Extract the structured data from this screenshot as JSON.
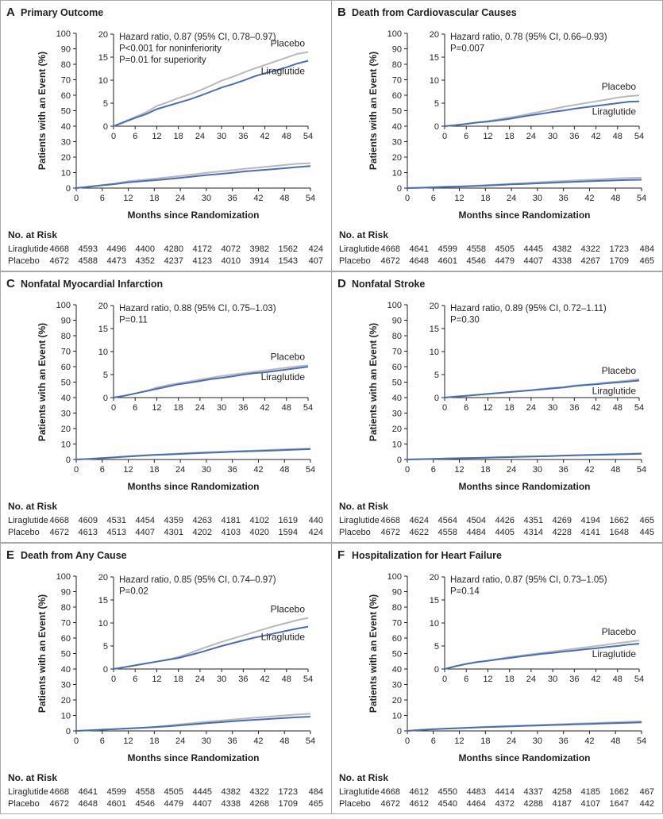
{
  "figure": {
    "risk_header": "No. at Risk",
    "main_xlabel": "Months since Randomization",
    "main_ylabel": "Patients with an Event (%)",
    "colors": {
      "liraglutide": "#4a6eb5",
      "placebo": "#b8b9bc",
      "axis": "#231f20",
      "border": "#a7a9ac"
    }
  },
  "panels": [
    {
      "letter": "A",
      "title": "Primary Outcome",
      "stats": [
        "Hazard ratio, 0.87 (95% CI, 0.78–0.97)",
        "P<0.001 for noninferiority",
        "P=0.01 for superiority"
      ],
      "risk": {
        "groups": [
          "Liraglutide",
          "Placebo"
        ],
        "values": [
          [
            4668,
            4593,
            4496,
            4400,
            4280,
            4172,
            4072,
            3982,
            1562,
            424
          ],
          [
            4672,
            4588,
            4473,
            4352,
            4237,
            4123,
            4010,
            3914,
            1543,
            407
          ]
        ]
      }
    },
    {
      "letter": "B",
      "title": "Death from Cardiovascular Causes",
      "stats": [
        "Hazard ratio, 0.78 (95% CI, 0.66–0.93)",
        "P=0.007"
      ],
      "risk": {
        "groups": [
          "Liraglutide",
          "Placebo"
        ],
        "values": [
          [
            4668,
            4641,
            4599,
            4558,
            4505,
            4445,
            4382,
            4322,
            1723,
            484
          ],
          [
            4672,
            4648,
            4601,
            4546,
            4479,
            4407,
            4338,
            4267,
            1709,
            465
          ]
        ]
      }
    },
    {
      "letter": "C",
      "title": "Nonfatal Myocardial Infarction",
      "stats": [
        "Hazard ratio, 0.88 (95% CI, 0.75–1.03)",
        "P=0.11"
      ],
      "risk": {
        "groups": [
          "Liraglutide",
          "Placebo"
        ],
        "values": [
          [
            4668,
            4609,
            4531,
            4454,
            4359,
            4263,
            4181,
            4102,
            1619,
            440
          ],
          [
            4672,
            4613,
            4513,
            4407,
            4301,
            4202,
            4103,
            4020,
            1594,
            424
          ]
        ]
      }
    },
    {
      "letter": "D",
      "title": "Nonfatal Stroke",
      "stats": [
        "Hazard ratio, 0.89 (95% CI, 0.72–1.11)",
        "P=0.30"
      ],
      "risk": {
        "groups": [
          "Liraglutide",
          "Placebo"
        ],
        "values": [
          [
            4668,
            4624,
            4564,
            4504,
            4426,
            4351,
            4269,
            4194,
            1662,
            465
          ],
          [
            4672,
            4622,
            4558,
            4484,
            4405,
            4314,
            4228,
            4141,
            1648,
            445
          ]
        ]
      }
    },
    {
      "letter": "E",
      "title": "Death from Any Cause",
      "stats": [
        "Hazard ratio, 0.85 (95% CI, 0.74–0.97)",
        "P=0.02"
      ],
      "risk": {
        "groups": [
          "Liraglutide",
          "Placebo"
        ],
        "values": [
          [
            4668,
            4641,
            4599,
            4558,
            4505,
            4445,
            4382,
            4322,
            1723,
            484
          ],
          [
            4672,
            4648,
            4601,
            4546,
            4479,
            4407,
            4338,
            4268,
            1709,
            465
          ]
        ]
      }
    },
    {
      "letter": "F",
      "title": "Hospitalization for Heart Failure",
      "stats": [
        "Hazard ratio, 0.87 (95% CI, 0.73–1.05)",
        "P=0.14"
      ],
      "risk": {
        "groups": [
          "Liraglutide",
          "Placebo"
        ],
        "values": [
          [
            4668,
            4612,
            4550,
            4483,
            4414,
            4337,
            4258,
            4185,
            1662,
            467
          ],
          [
            4672,
            4612,
            4540,
            4464,
            4372,
            4288,
            4187,
            4107,
            1647,
            442
          ]
        ]
      }
    }
  ],
  "chart_data": [
    {
      "type": "line",
      "title": "Primary Outcome",
      "xlabel": "Months since Randomization",
      "ylabel": "Patients with an Event (%)",
      "xlim": [
        0,
        54
      ],
      "ylim": [
        0,
        100
      ],
      "inset_ylim": [
        0,
        20
      ],
      "x_ticks": [
        0,
        6,
        12,
        18,
        24,
        30,
        36,
        42,
        48,
        54
      ],
      "y_ticks": [
        0,
        10,
        20,
        30,
        40,
        50,
        60,
        70,
        80,
        90,
        100
      ],
      "inset_y_ticks": [
        0,
        5,
        10,
        15,
        20
      ],
      "x": [
        0,
        3,
        6,
        9,
        12,
        15,
        18,
        21,
        24,
        27,
        30,
        33,
        36,
        39,
        42,
        45,
        48,
        51,
        54
      ],
      "series": [
        {
          "name": "Liraglutide",
          "values": [
            0,
            0.9,
            1.8,
            2.6,
            3.7,
            4.4,
            5.1,
            5.8,
            6.6,
            7.5,
            8.4,
            9.1,
            9.9,
            10.8,
            11.5,
            12.1,
            12.8,
            13.6,
            14.2
          ]
        },
        {
          "name": "Placebo",
          "values": [
            0,
            1.0,
            2.0,
            3.0,
            4.4,
            5.2,
            6.1,
            6.9,
            7.8,
            8.8,
            9.9,
            10.7,
            11.6,
            12.5,
            13.3,
            14.1,
            14.9,
            15.7,
            16.1
          ]
        }
      ]
    },
    {
      "type": "line",
      "title": "Death from Cardiovascular Causes",
      "xlabel": "Months since Randomization",
      "ylabel": "Patients with an Event (%)",
      "xlim": [
        0,
        54
      ],
      "ylim": [
        0,
        100
      ],
      "inset_ylim": [
        0,
        20
      ],
      "x_ticks": [
        0,
        6,
        12,
        18,
        24,
        30,
        36,
        42,
        48,
        54
      ],
      "y_ticks": [
        0,
        10,
        20,
        30,
        40,
        50,
        60,
        70,
        80,
        90,
        100
      ],
      "inset_y_ticks": [
        0,
        5,
        10,
        15,
        20
      ],
      "x": [
        0,
        3,
        6,
        9,
        12,
        15,
        18,
        21,
        24,
        27,
        30,
        33,
        36,
        39,
        42,
        45,
        48,
        51,
        54
      ],
      "series": [
        {
          "name": "Liraglutide",
          "values": [
            0,
            0.2,
            0.5,
            0.8,
            1.0,
            1.3,
            1.6,
            2.0,
            2.4,
            2.7,
            3.1,
            3.4,
            3.8,
            4.1,
            4.4,
            4.7,
            5.0,
            5.3,
            5.4
          ]
        },
        {
          "name": "Placebo",
          "values": [
            0,
            0.2,
            0.5,
            0.8,
            1.1,
            1.5,
            1.9,
            2.3,
            2.8,
            3.2,
            3.7,
            4.2,
            4.6,
            5.0,
            5.4,
            5.8,
            6.2,
            6.5,
            6.7
          ]
        }
      ]
    },
    {
      "type": "line",
      "title": "Nonfatal Myocardial Infarction",
      "xlabel": "Months since Randomization",
      "ylabel": "Patients with an Event (%)",
      "xlim": [
        0,
        54
      ],
      "ylim": [
        0,
        100
      ],
      "inset_ylim": [
        0,
        20
      ],
      "x_ticks": [
        0,
        6,
        12,
        18,
        24,
        30,
        36,
        42,
        48,
        54
      ],
      "y_ticks": [
        0,
        10,
        20,
        30,
        40,
        50,
        60,
        70,
        80,
        90,
        100
      ],
      "inset_y_ticks": [
        0,
        5,
        10,
        15,
        20
      ],
      "x": [
        0,
        3,
        6,
        9,
        12,
        15,
        18,
        21,
        24,
        27,
        30,
        33,
        36,
        39,
        42,
        45,
        48,
        51,
        54
      ],
      "series": [
        {
          "name": "Liraglutide",
          "values": [
            0,
            0.4,
            0.9,
            1.4,
            1.9,
            2.4,
            2.9,
            3.2,
            3.6,
            4.0,
            4.3,
            4.6,
            5.0,
            5.3,
            5.5,
            5.8,
            6.1,
            6.4,
            6.7
          ]
        },
        {
          "name": "Placebo",
          "values": [
            0,
            0.4,
            0.9,
            1.4,
            2.2,
            2.7,
            3.1,
            3.5,
            3.9,
            4.3,
            4.7,
            5.0,
            5.3,
            5.6,
            5.9,
            6.2,
            6.5,
            6.8,
            7.0
          ]
        }
      ]
    },
    {
      "type": "line",
      "title": "Nonfatal Stroke",
      "xlabel": "Months since Randomization",
      "ylabel": "Patients with an Event (%)",
      "xlim": [
        0,
        54
      ],
      "ylim": [
        0,
        100
      ],
      "inset_ylim": [
        0,
        20
      ],
      "x_ticks": [
        0,
        6,
        12,
        18,
        24,
        30,
        36,
        42,
        48,
        54
      ],
      "y_ticks": [
        0,
        10,
        20,
        30,
        40,
        50,
        60,
        70,
        80,
        90,
        100
      ],
      "inset_y_ticks": [
        0,
        5,
        10,
        15,
        20
      ],
      "x": [
        0,
        3,
        6,
        9,
        12,
        15,
        18,
        21,
        24,
        27,
        30,
        33,
        36,
        39,
        42,
        45,
        48,
        51,
        54
      ],
      "series": [
        {
          "name": "Liraglutide",
          "values": [
            0,
            0.2,
            0.4,
            0.6,
            0.8,
            1.0,
            1.2,
            1.4,
            1.6,
            1.8,
            2.0,
            2.2,
            2.5,
            2.7,
            2.9,
            3.1,
            3.3,
            3.5,
            3.7
          ]
        },
        {
          "name": "Placebo",
          "values": [
            0,
            0.2,
            0.4,
            0.6,
            0.8,
            1.0,
            1.2,
            1.4,
            1.6,
            1.9,
            2.1,
            2.3,
            2.6,
            2.8,
            3.0,
            3.3,
            3.5,
            3.7,
            4.0
          ]
        }
      ]
    },
    {
      "type": "line",
      "title": "Death from Any Cause",
      "xlabel": "Months since Randomization",
      "ylabel": "Patients with an Event (%)",
      "xlim": [
        0,
        54
      ],
      "ylim": [
        0,
        100
      ],
      "inset_ylim": [
        0,
        20
      ],
      "x_ticks": [
        0,
        6,
        12,
        18,
        24,
        30,
        36,
        42,
        48,
        54
      ],
      "y_ticks": [
        0,
        10,
        20,
        30,
        40,
        50,
        60,
        70,
        80,
        90,
        100
      ],
      "inset_y_ticks": [
        0,
        5,
        10,
        15,
        20
      ],
      "x": [
        0,
        3,
        6,
        9,
        12,
        15,
        18,
        21,
        24,
        27,
        30,
        33,
        36,
        39,
        42,
        45,
        48,
        51,
        54
      ],
      "series": [
        {
          "name": "Liraglutide",
          "values": [
            0,
            0.4,
            0.8,
            1.2,
            1.6,
            2.0,
            2.4,
            3.0,
            3.6,
            4.3,
            5.0,
            5.6,
            6.2,
            6.8,
            7.3,
            7.8,
            8.3,
            8.8,
            9.2
          ]
        },
        {
          "name": "Placebo",
          "values": [
            0,
            0.4,
            0.8,
            1.2,
            1.6,
            2.0,
            2.6,
            3.4,
            4.3,
            5.1,
            5.9,
            6.6,
            7.3,
            8.0,
            8.7,
            9.4,
            10.0,
            10.6,
            11.1
          ]
        }
      ]
    },
    {
      "type": "line",
      "title": "Hospitalization for Heart Failure",
      "xlabel": "Months since Randomization",
      "ylabel": "Patients with an Event (%)",
      "xlim": [
        0,
        54
      ],
      "ylim": [
        0,
        100
      ],
      "inset_ylim": [
        0,
        20
      ],
      "x_ticks": [
        0,
        6,
        12,
        18,
        24,
        30,
        36,
        42,
        48,
        54
      ],
      "y_ticks": [
        0,
        10,
        20,
        30,
        40,
        50,
        60,
        70,
        80,
        90,
        100
      ],
      "inset_y_ticks": [
        0,
        5,
        10,
        15,
        20
      ],
      "x": [
        0,
        3,
        6,
        9,
        12,
        15,
        18,
        21,
        24,
        27,
        30,
        33,
        36,
        39,
        42,
        45,
        48,
        51,
        54
      ],
      "series": [
        {
          "name": "Liraglutide",
          "values": [
            0,
            0.6,
            1.1,
            1.5,
            1.8,
            2.1,
            2.4,
            2.7,
            3.0,
            3.3,
            3.5,
            3.8,
            4.0,
            4.3,
            4.5,
            4.8,
            5.0,
            5.3,
            5.5
          ]
        },
        {
          "name": "Placebo",
          "values": [
            0,
            0.6,
            1.1,
            1.5,
            1.8,
            2.2,
            2.6,
            2.9,
            3.2,
            3.5,
            3.8,
            4.1,
            4.4,
            4.7,
            5.0,
            5.3,
            5.6,
            5.9,
            6.2
          ]
        }
      ]
    }
  ]
}
